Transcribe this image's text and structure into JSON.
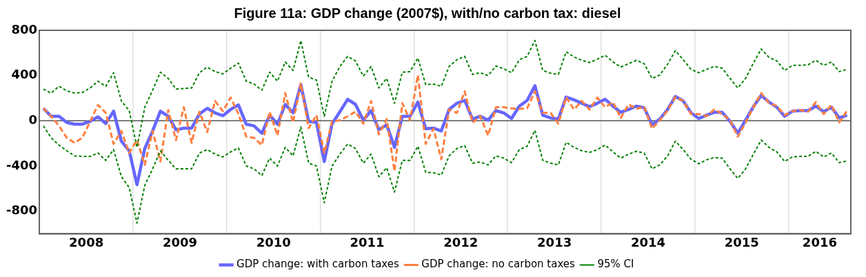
{
  "chart_data": {
    "type": "line",
    "title": "Figure 11a: GDP change (2007$), with/no carbon tax: diesel",
    "x": [
      "2008-01",
      "2008-02",
      "2008-03",
      "2008-04",
      "2008-05",
      "2008-06",
      "2008-07",
      "2008-08",
      "2008-09",
      "2008-10",
      "2008-11",
      "2008-12",
      "2009-01",
      "2009-02",
      "2009-03",
      "2009-04",
      "2009-05",
      "2009-06",
      "2009-07",
      "2009-08",
      "2009-09",
      "2009-10",
      "2009-11",
      "2009-12",
      "2010-01",
      "2010-02",
      "2010-03",
      "2010-04",
      "2010-05",
      "2010-06",
      "2010-07",
      "2010-08",
      "2010-09",
      "2010-10",
      "2010-11",
      "2010-12",
      "2011-01",
      "2011-02",
      "2011-03",
      "2011-04",
      "2011-05",
      "2011-06",
      "2011-07",
      "2011-08",
      "2011-09",
      "2011-10",
      "2011-11",
      "2011-12",
      "2012-01",
      "2012-02",
      "2012-03",
      "2012-04",
      "2012-05",
      "2012-06",
      "2012-07",
      "2012-08",
      "2012-09",
      "2012-10",
      "2012-11",
      "2012-12",
      "2013-01",
      "2013-02",
      "2013-03",
      "2013-04",
      "2013-05",
      "2013-06",
      "2013-07",
      "2013-08",
      "2013-09",
      "2013-10",
      "2013-11",
      "2013-12",
      "2014-01",
      "2014-02",
      "2014-03",
      "2014-04",
      "2014-05",
      "2014-06",
      "2014-07",
      "2014-08",
      "2014-09",
      "2014-10",
      "2014-11",
      "2014-12",
      "2015-01",
      "2015-02",
      "2015-03",
      "2015-04",
      "2015-05",
      "2015-06",
      "2015-07",
      "2015-08",
      "2015-09",
      "2015-10",
      "2015-11",
      "2015-12",
      "2016-01",
      "2016-02",
      "2016-03",
      "2016-04",
      "2016-05",
      "2016-06",
      "2016-07",
      "2016-08"
    ],
    "series": [
      {
        "name": "GDP change: with carbon taxes",
        "color": "#6666ff",
        "line_style": "solid",
        "values": [
          110,
          40,
          40,
          -15,
          -30,
          -30,
          -5,
          35,
          -25,
          85,
          -180,
          -265,
          -565,
          -245,
          -90,
          85,
          40,
          -80,
          -65,
          -65,
          60,
          110,
          70,
          45,
          100,
          140,
          -30,
          -45,
          -110,
          50,
          -30,
          145,
          70,
          320,
          -5,
          -15,
          -360,
          -25,
          80,
          190,
          145,
          5,
          90,
          -80,
          -35,
          -235,
          40,
          40,
          165,
          -70,
          -65,
          -90,
          100,
          155,
          180,
          15,
          40,
          5,
          90,
          70,
          20,
          130,
          180,
          310,
          50,
          25,
          15,
          210,
          185,
          155,
          125,
          155,
          190,
          130,
          75,
          100,
          130,
          115,
          -35,
          15,
          100,
          215,
          175,
          70,
          20,
          50,
          75,
          75,
          -5,
          -110,
          5,
          125,
          225,
          165,
          120,
          40,
          85,
          90,
          90,
          130,
          80,
          120,
          25,
          50
        ]
      },
      {
        "name": "GDP change: no carbon taxes",
        "color": "#ff7f3f",
        "line_style": "dashed",
        "values": [
          110,
          40,
          -45,
          -150,
          -195,
          -150,
          -5,
          140,
          70,
          -205,
          -90,
          -285,
          -170,
          -390,
          -90,
          -360,
          95,
          -170,
          120,
          -195,
          80,
          -100,
          175,
          85,
          205,
          60,
          -140,
          -150,
          -215,
          80,
          -130,
          245,
          -15,
          330,
          -65,
          50,
          -285,
          -5,
          5,
          40,
          80,
          -25,
          175,
          -120,
          15,
          -445,
          155,
          5,
          405,
          -205,
          -70,
          -340,
          100,
          70,
          260,
          -15,
          40,
          -130,
          120,
          120,
          110,
          105,
          110,
          260,
          70,
          70,
          -25,
          210,
          100,
          175,
          100,
          205,
          120,
          165,
          25,
          145,
          105,
          125,
          -70,
          5,
          90,
          210,
          175,
          60,
          60,
          40,
          100,
          60,
          5,
          -140,
          -15,
          120,
          245,
          155,
          130,
          50,
          85,
          95,
          80,
          165,
          60,
          140,
          -15,
          90
        ]
      },
      {
        "name": "95% CI",
        "color": "#008000",
        "line_style": "dotted",
        "values": [
          280,
          245,
          305,
          265,
          245,
          250,
          290,
          350,
          305,
          425,
          175,
          90,
          -235,
          120,
          270,
          430,
          375,
          280,
          285,
          290,
          425,
          475,
          435,
          415,
          465,
          510,
          350,
          325,
          270,
          430,
          350,
          520,
          445,
          710,
          385,
          360,
          40,
          350,
          480,
          570,
          530,
          395,
          480,
          290,
          375,
          155,
          430,
          435,
          555,
          320,
          325,
          305,
          480,
          540,
          570,
          410,
          425,
          400,
          485,
          460,
          425,
          540,
          570,
          710,
          445,
          420,
          410,
          610,
          565,
          535,
          515,
          545,
          580,
          520,
          475,
          505,
          535,
          505,
          375,
          405,
          500,
          620,
          540,
          455,
          425,
          455,
          480,
          465,
          375,
          290,
          375,
          510,
          635,
          560,
          530,
          445,
          490,
          490,
          495,
          535,
          490,
          520,
          435,
          455
        ]
      },
      {
        "color": "#008000",
        "line_style": "dotted",
        "values": [
          -45,
          -150,
          -215,
          -265,
          -310,
          -315,
          -315,
          -285,
          -350,
          -255,
          -495,
          -590,
          -905,
          -570,
          -425,
          -265,
          -350,
          -425,
          -425,
          -425,
          -285,
          -255,
          -295,
          -320,
          -275,
          -240,
          -400,
          -425,
          -485,
          -330,
          -400,
          -235,
          -310,
          -55,
          -375,
          -400,
          -725,
          -400,
          -295,
          -205,
          -245,
          -375,
          -295,
          -495,
          -415,
          -630,
          -350,
          -350,
          -225,
          -455,
          -460,
          -480,
          -310,
          -245,
          -220,
          -375,
          -365,
          -390,
          -310,
          -330,
          -370,
          -255,
          -225,
          -85,
          -350,
          -375,
          -390,
          -190,
          -235,
          -265,
          -280,
          -255,
          -215,
          -275,
          -330,
          -295,
          -270,
          -285,
          -425,
          -390,
          -310,
          -180,
          -255,
          -340,
          -380,
          -345,
          -325,
          -330,
          -425,
          -510,
          -425,
          -295,
          -170,
          -235,
          -275,
          -360,
          -320,
          -315,
          -315,
          -270,
          -320,
          -285,
          -370,
          -355
        ]
      }
    ],
    "xlim": [
      "2007-12-16",
      "2016-08-16"
    ],
    "xticks": [
      {
        "value": "2008-06-16",
        "label": "2008"
      },
      {
        "value": "2008-12-16",
        "label": null
      },
      {
        "value": "2009-06-16",
        "label": "2009"
      },
      {
        "value": "2009-12-16",
        "label": null
      },
      {
        "value": "2010-06-16",
        "label": "2010"
      },
      {
        "value": "2010-12-16",
        "label": null
      },
      {
        "value": "2011-06-16",
        "label": "2011"
      },
      {
        "value": "2011-12-16",
        "label": null
      },
      {
        "value": "2012-06-16",
        "label": "2012"
      },
      {
        "value": "2012-12-16",
        "label": null
      },
      {
        "value": "2013-06-16",
        "label": "2013"
      },
      {
        "value": "2013-12-16",
        "label": null
      },
      {
        "value": "2014-06-16",
        "label": "2014"
      },
      {
        "value": "2014-12-16",
        "label": null
      },
      {
        "value": "2015-06-16",
        "label": "2015"
      },
      {
        "value": "2015-12-16",
        "label": null
      },
      {
        "value": "2016-04-16",
        "label": "2016"
      }
    ],
    "ylim": [
      -1000,
      800
    ],
    "yticks": [
      -800,
      -400,
      0,
      400,
      800
    ],
    "ref_lines": [
      {
        "axis": "y",
        "value": 0,
        "color": "#555555"
      }
    ],
    "grid": "x",
    "legend": "bottom",
    "marker": "none"
  }
}
